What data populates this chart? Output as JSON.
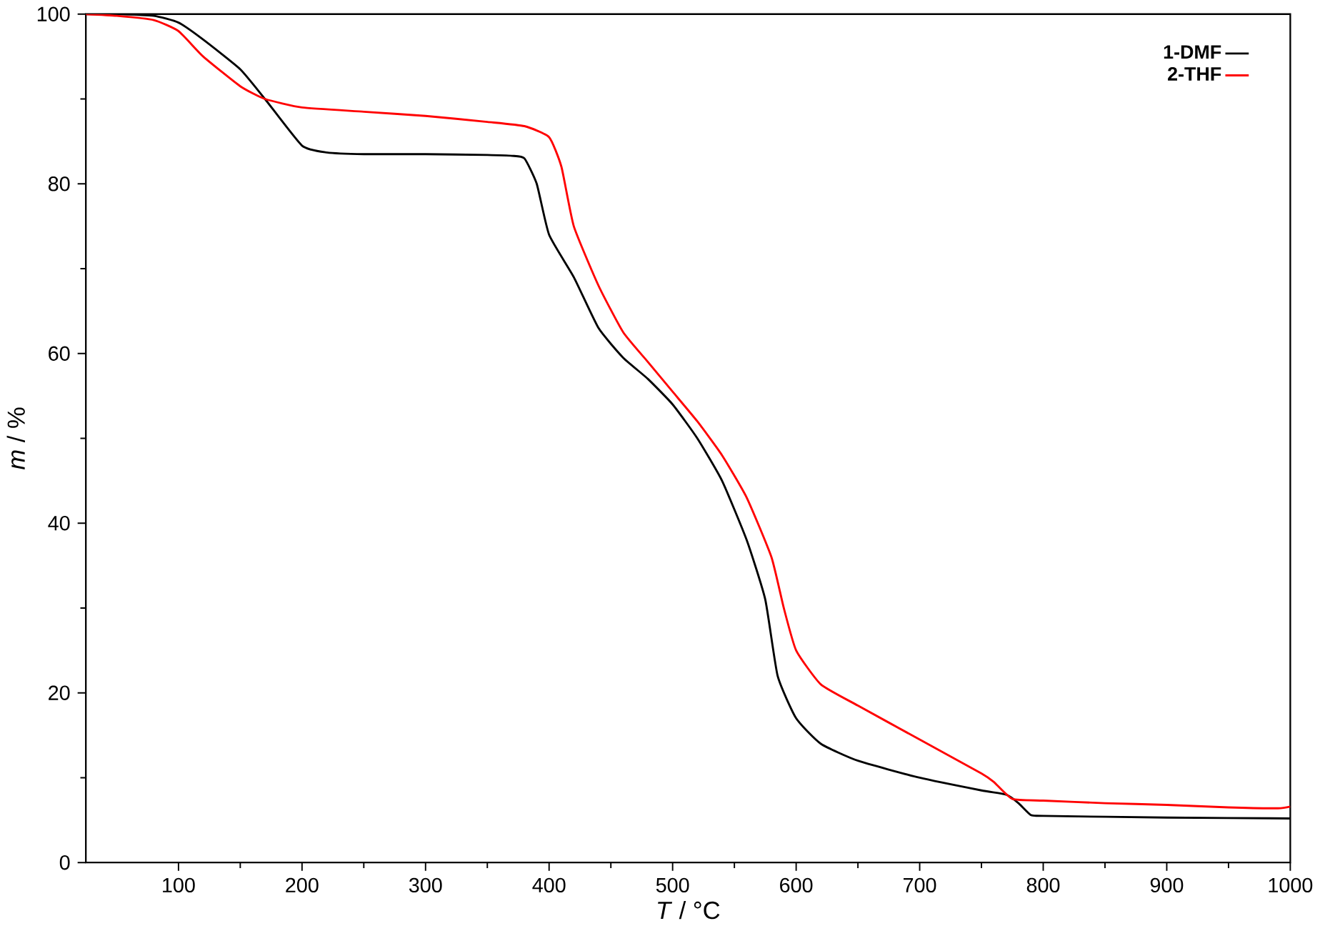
{
  "chart_data": {
    "type": "line",
    "xlabel": "*T* / °C",
    "ylabel": "*m* / %",
    "xlim": [
      25,
      1000
    ],
    "ylim": [
      0,
      100
    ],
    "xticks": [
      100,
      200,
      300,
      400,
      500,
      600,
      700,
      800,
      900,
      1000
    ],
    "yticks": [
      0,
      20,
      40,
      60,
      80,
      100
    ],
    "grid": false,
    "legend": "top right",
    "marker": "none",
    "line_style": "solid",
    "series": [
      {
        "name": "1-DMF",
        "color": "#000000",
        "x": [
          25,
          50,
          80,
          100,
          120,
          150,
          170,
          200,
          220,
          250,
          300,
          350,
          370,
          380,
          390,
          400,
          420,
          440,
          460,
          480,
          500,
          520,
          540,
          560,
          575,
          585,
          600,
          620,
          650,
          700,
          750,
          770,
          780,
          790,
          800,
          900,
          1000
        ],
        "values": [
          100,
          100,
          99.8,
          99,
          97,
          93.5,
          90,
          84.5,
          83.7,
          83.5,
          83.5,
          83.4,
          83.3,
          83,
          80,
          74,
          69,
          63,
          59.5,
          57,
          54,
          50,
          45,
          38,
          31,
          22,
          17,
          14,
          12,
          10,
          8.5,
          8,
          7,
          5.6,
          5.5,
          5.3,
          5.2
        ]
      },
      {
        "name": "2-THF",
        "color": "#ff0000",
        "x": [
          25,
          50,
          80,
          100,
          120,
          150,
          170,
          200,
          250,
          300,
          350,
          380,
          400,
          410,
          420,
          440,
          460,
          480,
          500,
          520,
          540,
          560,
          580,
          590,
          600,
          620,
          650,
          700,
          750,
          760,
          775,
          800,
          850,
          900,
          950,
          990,
          1000
        ],
        "values": [
          100,
          99.8,
          99.3,
          98,
          95,
          91.5,
          90,
          89,
          88.5,
          88,
          87.3,
          86.8,
          85.5,
          82,
          75,
          68,
          62.5,
          59,
          55.5,
          52,
          48,
          43,
          36,
          30,
          25,
          21,
          18.5,
          14.5,
          10.5,
          9.5,
          7.5,
          7.3,
          7,
          6.8,
          6.5,
          6.4,
          6.6
        ]
      }
    ]
  }
}
